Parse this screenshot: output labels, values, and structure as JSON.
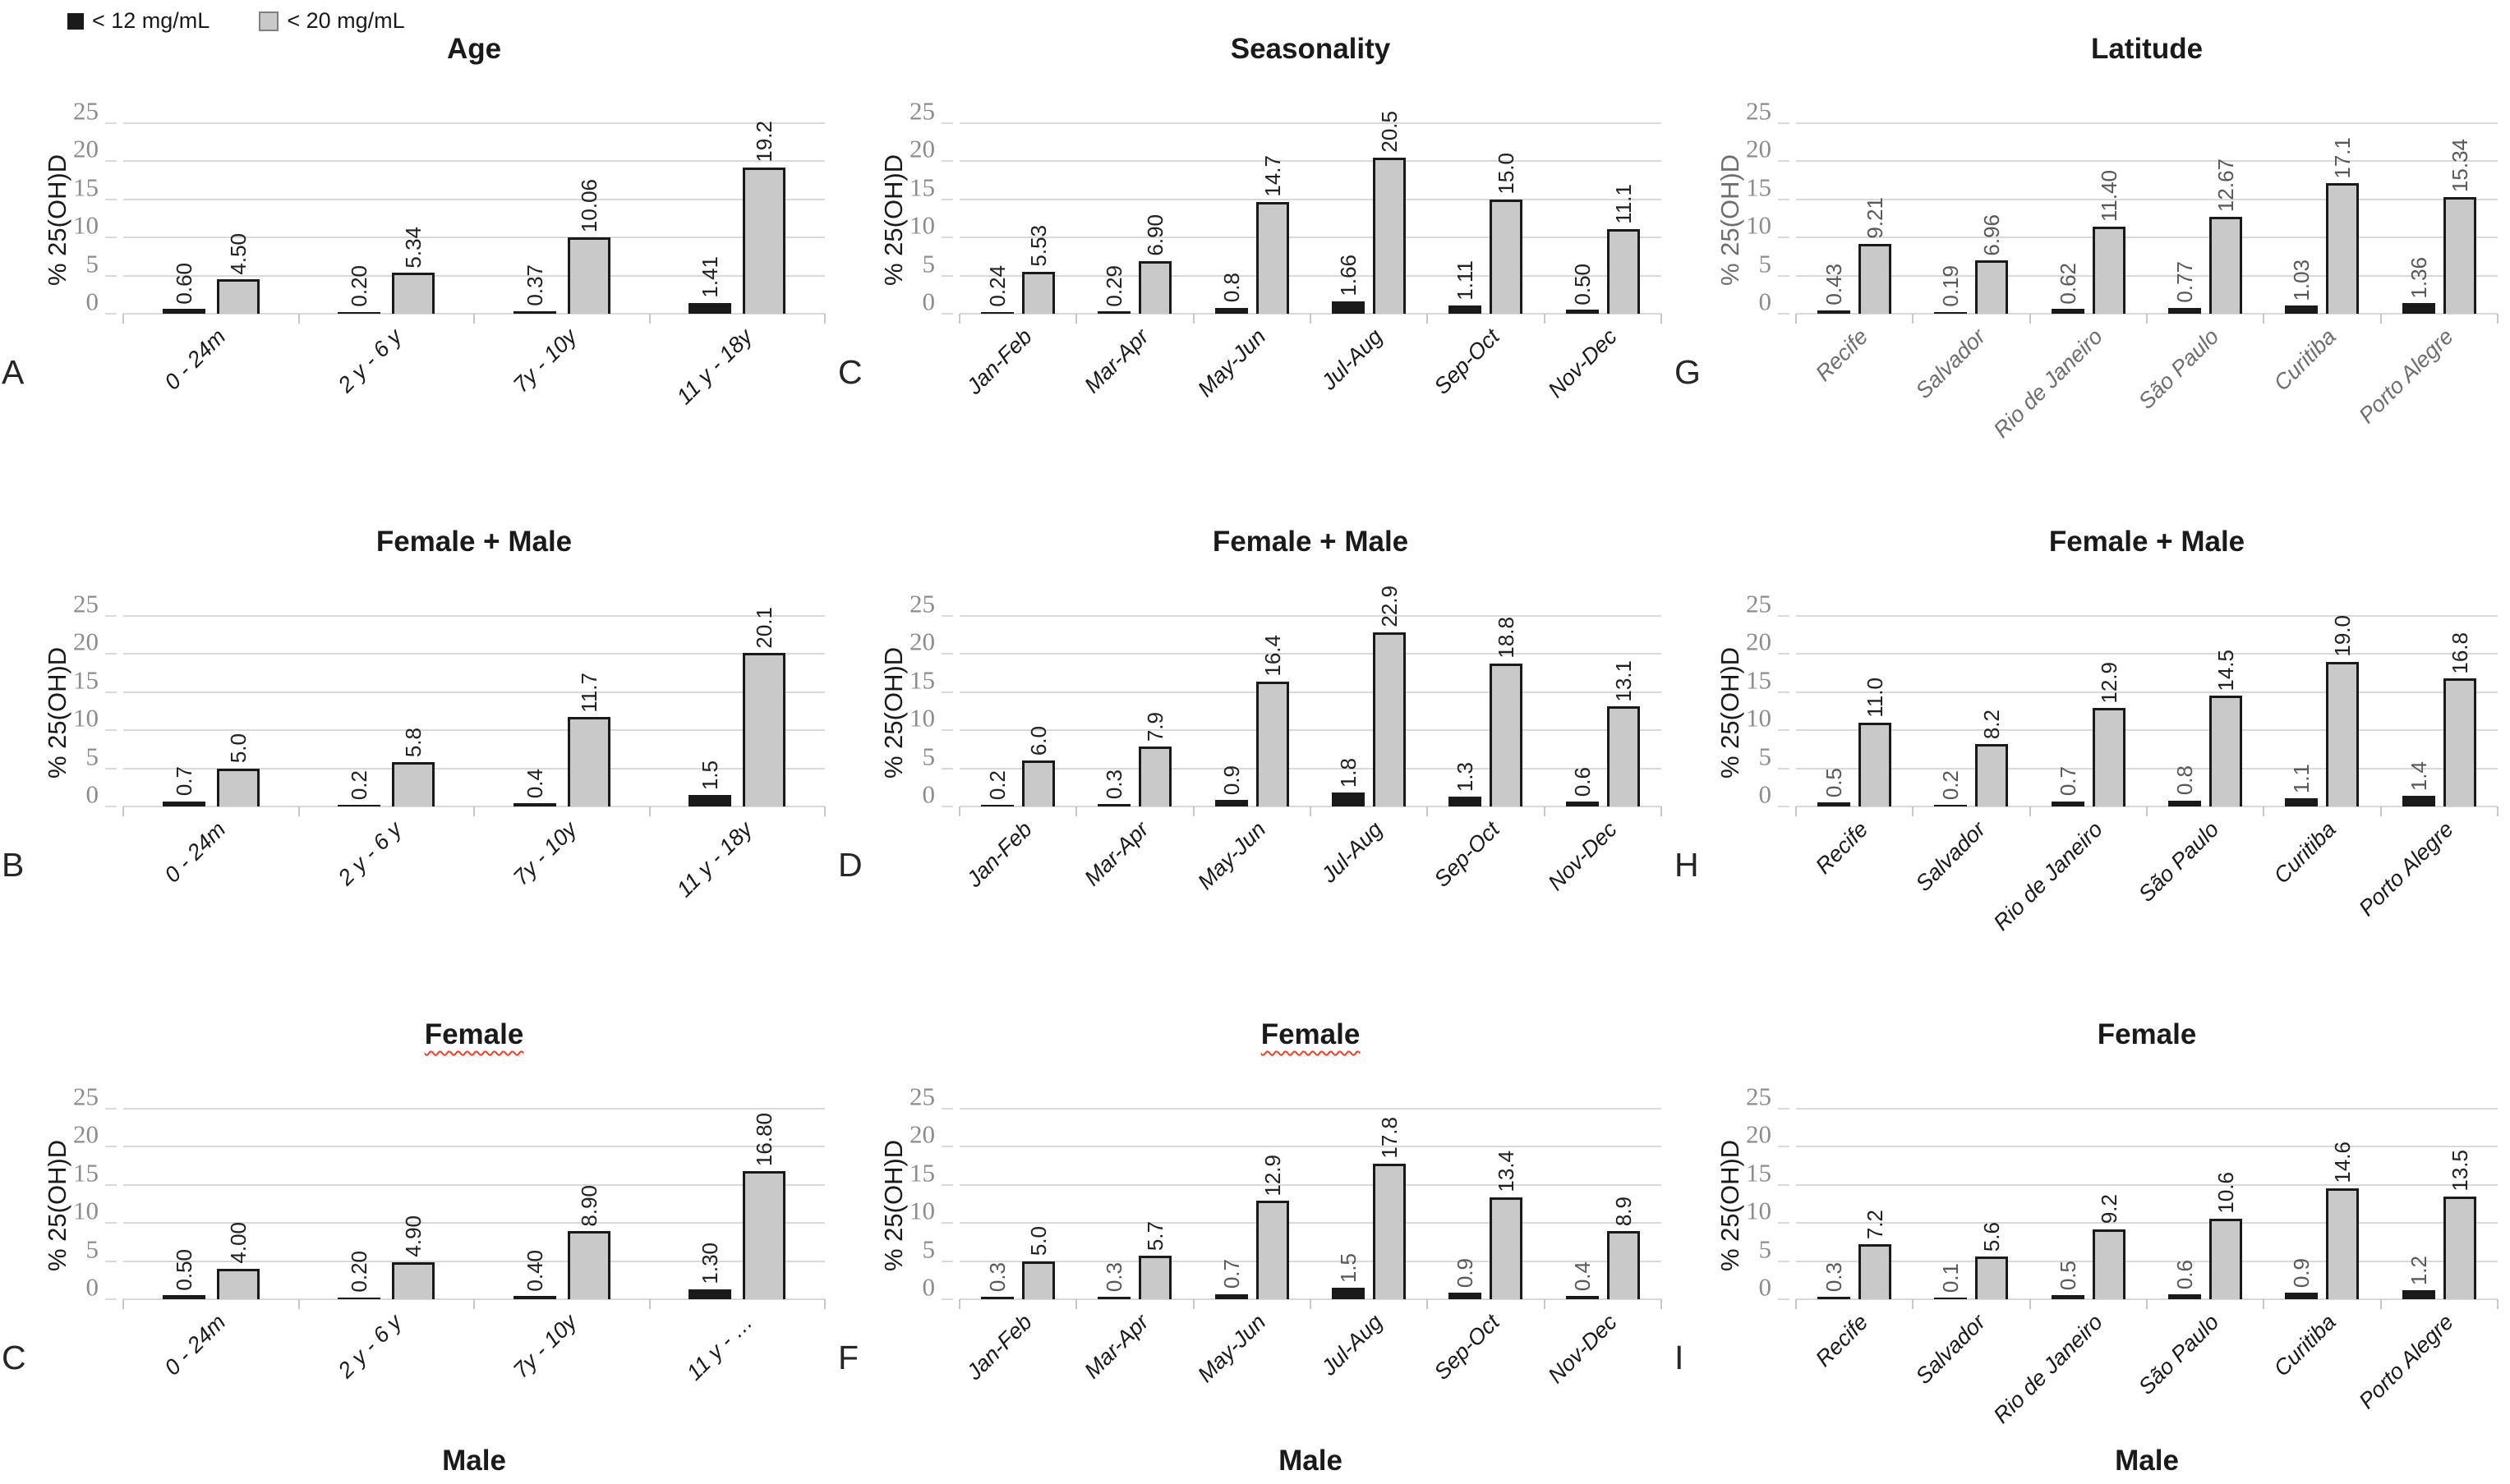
{
  "legend": {
    "items": [
      {
        "label": "< 12 mg/mL",
        "color": "#1a1a1a",
        "swatch": "black-square"
      },
      {
        "label": "< 20 mg/mL",
        "color": "#c9c9c9",
        "swatch": "gray-square"
      }
    ]
  },
  "axis": {
    "y_label": "% 25(OH)D",
    "y_ticks": [
      0,
      5,
      10,
      15,
      20,
      25
    ],
    "y_max": 25,
    "grid": "horizontal"
  },
  "colors": {
    "bar_black": "#1a1a1a",
    "bar_gray_fill": "#c9c9c9",
    "bar_gray_border": "#1a1a1a",
    "gridline": "#d9d9d9",
    "tick_text": "#8c8c8c",
    "gray_panel_text": "#6e6e6e",
    "data_label": "#212121",
    "data_label_gray": "#595959",
    "misspell_underline": "#ff3b1f"
  },
  "chart_data": [
    {
      "type": "bar",
      "letter": "A",
      "title": "Age",
      "title_underline": false,
      "xlabel": "",
      "text_color": "",
      "ylim": [
        0,
        25
      ],
      "categories": [
        "0 - 24m",
        "2 y - 6 y",
        "7y - 10y",
        "11 y - 18y"
      ],
      "series": [
        {
          "name": "< 12 mg/mL",
          "color": "black",
          "values": [
            0.6,
            0.2,
            0.37,
            1.41
          ],
          "labels": [
            "0.60",
            "0.20",
            "0.37",
            "1.41"
          ],
          "label_color": "#212121"
        },
        {
          "name": "< 20 mg/mL",
          "color": "gray",
          "values": [
            4.5,
            5.34,
            10.06,
            19.2
          ],
          "labels": [
            "4.50",
            "5.34",
            "10.06",
            "19.2"
          ],
          "label_color": "#212121"
        }
      ]
    },
    {
      "type": "bar",
      "letter": "C",
      "title": "Seasonality",
      "title_underline": false,
      "xlabel": "",
      "text_color": "",
      "ylim": [
        0,
        25
      ],
      "categories": [
        "Jan-Feb",
        "Mar-Apr",
        "May-Jun",
        "Jul-Aug",
        "Sep-Oct",
        "Nov-Dec"
      ],
      "series": [
        {
          "name": "< 12 mg/mL",
          "color": "black",
          "values": [
            0.24,
            0.29,
            0.8,
            1.66,
            1.11,
            0.5
          ],
          "labels": [
            "0.24",
            "0.29",
            "0.8",
            "1.66",
            "1.11",
            "0.50"
          ],
          "label_color": "#212121"
        },
        {
          "name": "< 20 mg/mL",
          "color": "gray",
          "values": [
            5.53,
            6.9,
            14.7,
            20.5,
            15.0,
            11.1
          ],
          "labels": [
            "5.53",
            "6.90",
            "14.7",
            "20.5",
            "15.0",
            "11.1"
          ],
          "label_color": "#212121"
        }
      ]
    },
    {
      "type": "bar",
      "letter": "G",
      "title": "Latitude",
      "title_underline": false,
      "xlabel": "",
      "text_color": "#6e6e6e",
      "ylim": [
        0,
        25
      ],
      "categories": [
        "Recife",
        "Salvador",
        "Rio de Janeiro",
        "São Paulo",
        "Curitiba",
        "Porto Alegre"
      ],
      "series": [
        {
          "name": "< 12 mg/mL",
          "color": "black",
          "values": [
            0.43,
            0.19,
            0.62,
            0.77,
            1.03,
            1.36
          ],
          "labels": [
            "0.43",
            "0.19",
            "0.62",
            "0.77",
            "1.03",
            "1.36"
          ],
          "label_color": "#595959"
        },
        {
          "name": "< 20 mg/mL",
          "color": "gray",
          "values": [
            9.21,
            6.96,
            11.4,
            12.67,
            17.1,
            15.34
          ],
          "labels": [
            "9.21",
            "6.96",
            "11.40",
            "12.67",
            "17.1",
            "15.34"
          ],
          "label_color": "#595959"
        }
      ]
    },
    {
      "type": "bar",
      "letter": "B",
      "title": "Female + Male",
      "title_underline": false,
      "xlabel": "",
      "text_color": "",
      "ylim": [
        0,
        25
      ],
      "categories": [
        "0 - 24m",
        "2 y - 6 y",
        "7y - 10y",
        "11 y - 18y"
      ],
      "series": [
        {
          "name": "< 12 mg/mL",
          "color": "black",
          "values": [
            0.7,
            0.2,
            0.4,
            1.5
          ],
          "labels": [
            "0.7",
            "0.2",
            "0.4",
            "1.5"
          ],
          "label_color": "#212121"
        },
        {
          "name": "< 20 mg/mL",
          "color": "gray",
          "values": [
            5.0,
            5.8,
            11.7,
            20.1
          ],
          "labels": [
            "5.0",
            "5.8",
            "11.7",
            "20.1"
          ],
          "label_color": "#212121"
        }
      ]
    },
    {
      "type": "bar",
      "letter": "D",
      "title": "Female + Male",
      "title_underline": false,
      "xlabel": "",
      "text_color": "",
      "ylim": [
        0,
        25
      ],
      "categories": [
        "Jan-Feb",
        "Mar-Apr",
        "May-Jun",
        "Jul-Aug",
        "Sep-Oct",
        "Nov-Dec"
      ],
      "series": [
        {
          "name": "< 12 mg/mL",
          "color": "black",
          "values": [
            0.2,
            0.3,
            0.9,
            1.8,
            1.3,
            0.6
          ],
          "labels": [
            "0.2",
            "0.3",
            "0.9",
            "1.8",
            "1.3",
            "0.6"
          ],
          "label_color": "#212121"
        },
        {
          "name": "< 20 mg/mL",
          "color": "gray",
          "values": [
            6.0,
            7.9,
            16.4,
            22.9,
            18.8,
            13.1
          ],
          "labels": [
            "6.0",
            "7.9",
            "16.4",
            "22.9",
            "18.8",
            "13.1"
          ],
          "label_color": "#212121"
        }
      ]
    },
    {
      "type": "bar",
      "letter": "H",
      "title": "Female + Male",
      "title_underline": false,
      "xlabel": "",
      "text_color": "",
      "ylim": [
        0,
        25
      ],
      "categories": [
        "Recife",
        "Salvador",
        "Rio de Janeiro",
        "São Paulo",
        "Curitiba",
        "Porto Alegre"
      ],
      "series": [
        {
          "name": "< 12 mg/mL",
          "color": "black",
          "values": [
            0.5,
            0.2,
            0.7,
            0.8,
            1.1,
            1.4
          ],
          "labels": [
            "0.5",
            "0.2",
            "0.7",
            "0.8",
            "1.1",
            "1.4"
          ],
          "label_color": "#595959"
        },
        {
          "name": "< 20 mg/mL",
          "color": "gray",
          "values": [
            11.0,
            8.2,
            12.9,
            14.5,
            19.0,
            16.8
          ],
          "labels": [
            "11.0",
            "8.2",
            "12.9",
            "14.5",
            "19.0",
            "16.8"
          ],
          "label_color": "#212121"
        }
      ]
    },
    {
      "type": "bar",
      "letter": "C",
      "title": "Female",
      "title_underline": true,
      "xlabel": "Male",
      "text_color": "",
      "ylim": [
        0,
        25
      ],
      "categories": [
        "0 - 24m",
        "2 y - 6 y",
        "7y - 10y",
        "11 y - …"
      ],
      "series": [
        {
          "name": "< 12 mg/mL",
          "color": "black",
          "values": [
            0.5,
            0.2,
            0.4,
            1.3
          ],
          "labels": [
            "0.50",
            "0.20",
            "0.40",
            "1.30"
          ],
          "label_color": "#212121"
        },
        {
          "name": "< 20 mg/mL",
          "color": "gray",
          "values": [
            4.0,
            4.9,
            8.9,
            16.8
          ],
          "labels": [
            "4.00",
            "4.90",
            "8.90",
            "16.80"
          ],
          "label_color": "#212121"
        }
      ]
    },
    {
      "type": "bar",
      "letter": "F",
      "title": "Female",
      "title_underline": true,
      "xlabel": "Male",
      "text_color": "",
      "ylim": [
        0,
        25
      ],
      "categories": [
        "Jan-Feb",
        "Mar-Apr",
        "May-Jun",
        "Jul-Aug",
        "Sep-Oct",
        "Nov-Dec"
      ],
      "series": [
        {
          "name": "< 12 mg/mL",
          "color": "black",
          "values": [
            0.3,
            0.3,
            0.7,
            1.5,
            0.9,
            0.4
          ],
          "labels": [
            "0.3",
            "0.3",
            "0.7",
            "1.5",
            "0.9",
            "0.4"
          ],
          "label_color": "#595959"
        },
        {
          "name": "< 20 mg/mL",
          "color": "gray",
          "values": [
            5.0,
            5.7,
            12.9,
            17.8,
            13.4,
            8.9
          ],
          "labels": [
            "5.0",
            "5.7",
            "12.9",
            "17.8",
            "13.4",
            "8.9"
          ],
          "label_color": "#212121"
        }
      ]
    },
    {
      "type": "bar",
      "letter": "I",
      "title": "Female",
      "title_underline": false,
      "xlabel": "Male",
      "text_color": "",
      "ylim": [
        0,
        25
      ],
      "categories": [
        "Recife",
        "Salvador",
        "Rio de Janeiro",
        "São Paulo",
        "Curitiba",
        "Porto Alegre"
      ],
      "series": [
        {
          "name": "< 12 mg/mL",
          "color": "black",
          "values": [
            0.3,
            0.1,
            0.5,
            0.6,
            0.9,
            1.2
          ],
          "labels": [
            "0.3",
            "0.1",
            "0.5",
            "0.6",
            "0.9",
            "1.2"
          ],
          "label_color": "#595959"
        },
        {
          "name": "< 20 mg/mL",
          "color": "gray",
          "values": [
            7.2,
            5.6,
            9.2,
            10.6,
            14.6,
            13.5
          ],
          "labels": [
            "7.2",
            "5.6",
            "9.2",
            "10.6",
            "14.6",
            "13.5"
          ],
          "label_color": "#212121"
        }
      ]
    }
  ]
}
